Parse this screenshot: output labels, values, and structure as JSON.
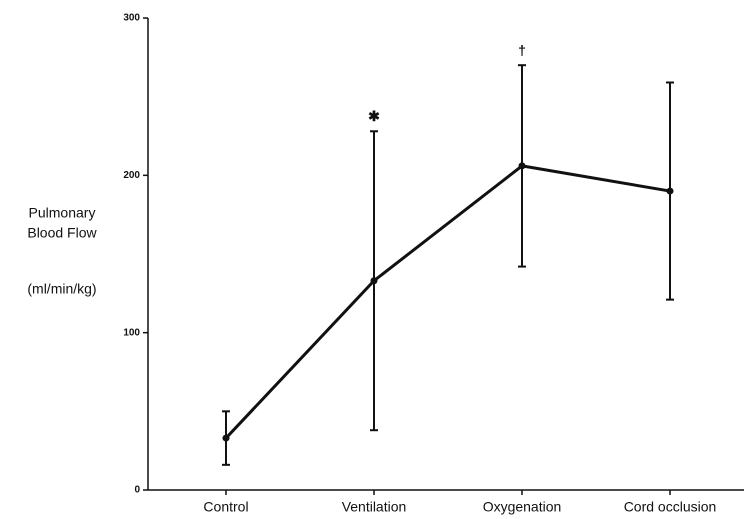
{
  "chart_data": {
    "type": "line",
    "y_label": [
      "Pulmonary",
      "Blood Flow",
      "(ml/min/kg)"
    ],
    "categories": [
      "Control",
      "Ventilation",
      "Oxygenation",
      "Cord occlusion"
    ],
    "values": [
      33,
      133,
      206,
      190
    ],
    "errors": [
      17,
      95,
      64,
      69
    ],
    "color": "#111111",
    "ylim": [
      0,
      300
    ],
    "yticks": [
      0,
      100,
      200,
      300
    ],
    "grid": false,
    "annotations": [
      {
        "text": "✱",
        "x": "Ventilation"
      },
      {
        "text": "†",
        "x": "Oxygenation"
      }
    ]
  }
}
